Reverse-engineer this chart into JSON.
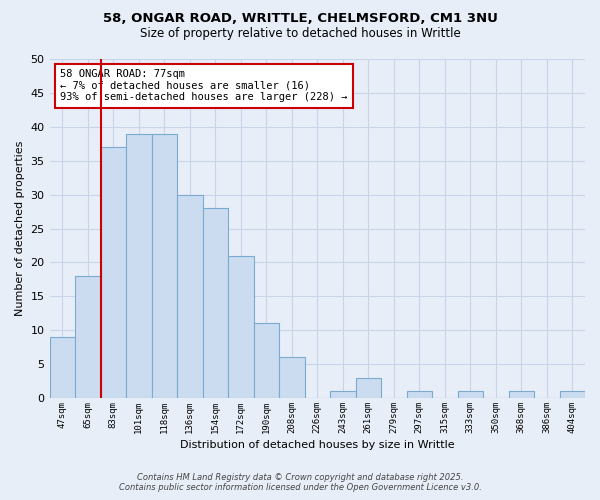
{
  "title1": "58, ONGAR ROAD, WRITTLE, CHELMSFORD, CM1 3NU",
  "title2": "Size of property relative to detached houses in Writtle",
  "xlabel": "Distribution of detached houses by size in Writtle",
  "ylabel": "Number of detached properties",
  "categories": [
    "47sqm",
    "65sqm",
    "83sqm",
    "101sqm",
    "118sqm",
    "136sqm",
    "154sqm",
    "172sqm",
    "190sqm",
    "208sqm",
    "226sqm",
    "243sqm",
    "261sqm",
    "279sqm",
    "297sqm",
    "315sqm",
    "333sqm",
    "350sqm",
    "368sqm",
    "386sqm",
    "404sqm"
  ],
  "values": [
    9,
    18,
    37,
    39,
    39,
    30,
    28,
    21,
    11,
    6,
    0,
    1,
    3,
    0,
    1,
    0,
    1,
    0,
    1,
    0,
    1
  ],
  "bar_color": "#ccdcf0",
  "bar_edge_color": "#7aaad0",
  "vline_x_index": 2,
  "vline_color": "#cc0000",
  "annotation_line1": "58 ONGAR ROAD: 77sqm",
  "annotation_line2": "← 7% of detached houses are smaller (16)",
  "annotation_line3": "93% of semi-detached houses are larger (228) →",
  "annotation_box_color": "#ffffff",
  "annotation_box_edge": "#cc0000",
  "ylim": [
    0,
    50
  ],
  "yticks": [
    0,
    5,
    10,
    15,
    20,
    25,
    30,
    35,
    40,
    45,
    50
  ],
  "background_color": "#e8eef8",
  "grid_color": "#c8d4e8",
  "footer1": "Contains HM Land Registry data © Crown copyright and database right 2025.",
  "footer2": "Contains public sector information licensed under the Open Government Licence v3.0."
}
